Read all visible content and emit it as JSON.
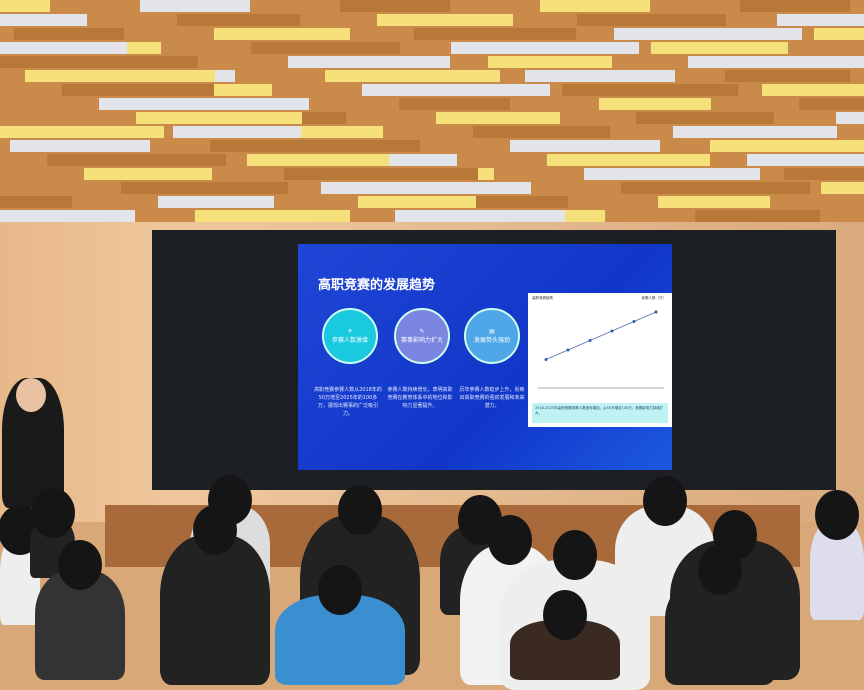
{
  "slide": {
    "title": "高职竞赛的发展趋势",
    "items": [
      {
        "label": "参赛人数激增",
        "text": "高职竞赛参赛人数从2018年的50万增至2025年的100多万，展现出赛事的广泛吸引力。",
        "color": "#18c9e0"
      },
      {
        "label": "赛事影响力扩大",
        "text": "参赛人数持续增长，表明高职竞赛在教育体系中的地位和影响力显著提升。",
        "color": "#7b86e0"
      },
      {
        "label": "发展势头强劲",
        "text": "历年参赛人数稳步上升，反映出高职竞赛的强劲发展和未来潜力。",
        "color": "#4fa6e8"
      }
    ],
    "chart": {
      "title": "高职竞赛趋势",
      "legend": "参赛人数（万）",
      "caption": "2018-2025年高职竞赛参赛人数逐年增加，从50万增至100万，竞赛影响力持续扩大。"
    }
  },
  "chart_data": {
    "type": "line",
    "series": [
      {
        "name": "参赛人数（万）",
        "values": [
          50,
          60,
          70,
          80,
          90,
          100
        ]
      }
    ]
  }
}
